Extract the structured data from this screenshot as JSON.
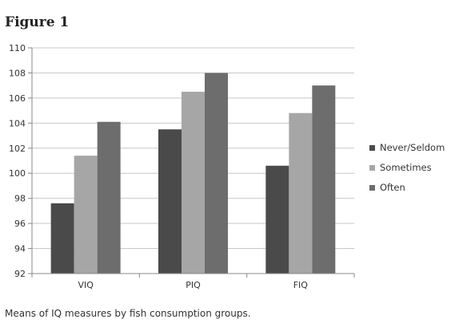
{
  "figure_title": "Figure 1",
  "caption": "Means of IQ measures by fish consumption groups.",
  "chart_data": {
    "type": "bar",
    "title": "",
    "xlabel": "",
    "ylabel": "",
    "categories": [
      "VIQ",
      "PIQ",
      "FIQ"
    ],
    "series": [
      {
        "name": "Never/Seldom",
        "values": [
          97.6,
          103.5,
          100.6
        ],
        "color": "#4a4a4a"
      },
      {
        "name": "Sometimes",
        "values": [
          101.4,
          106.5,
          104.8
        ],
        "color": "#a6a6a6"
      },
      {
        "name": "Often",
        "values": [
          104.1,
          108.0,
          107.0
        ],
        "color": "#6d6d6d"
      }
    ],
    "ylim": [
      92,
      110
    ],
    "yticks": [
      92,
      94,
      96,
      98,
      100,
      102,
      104,
      106,
      108,
      110
    ],
    "grid": true,
    "legend_position": "right"
  }
}
